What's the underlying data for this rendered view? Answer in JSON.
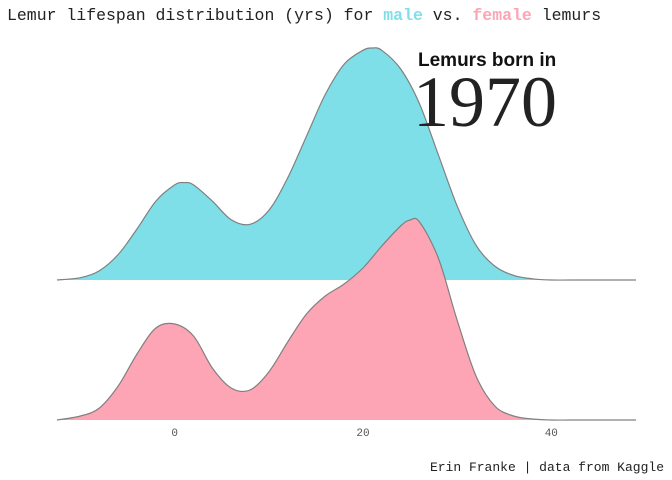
{
  "title": {
    "prefix": "Lemur lifespan distribution (yrs) for ",
    "male_word": "male",
    "middle": " vs. ",
    "female_word": "female",
    "suffix": " lemurs"
  },
  "annotation": {
    "label": "Lemurs born in",
    "year": "1970"
  },
  "caption": "Erin Franke | data from Kaggle",
  "colors": {
    "male": "#7fdfe8",
    "female": "#fda5b4",
    "outline": "#808080",
    "text": "#222222",
    "axis_text": "#555555"
  },
  "chart_data": {
    "type": "area",
    "subtype": "ridgeline-density",
    "title": "Lemur lifespan distribution (yrs) for male vs. female lemurs",
    "xlabel": "",
    "ylabel": "",
    "xlim": [
      -12.5,
      49
    ],
    "x_ticks": [
      0,
      20,
      40
    ],
    "x_tick_labels": [
      "0",
      "20",
      "40"
    ],
    "grid": false,
    "series": [
      {
        "name": "male",
        "color": "#7fdfe8",
        "x": [
          -12.5,
          -10,
          -8,
          -6,
          -4,
          -2,
          0,
          1,
          2,
          4,
          6,
          8,
          10,
          12,
          14,
          16,
          18,
          20,
          21,
          22,
          24,
          26,
          28,
          30,
          32,
          34,
          36,
          38,
          40,
          42,
          44,
          46,
          49
        ],
        "y": [
          0.0,
          0.01,
          0.04,
          0.11,
          0.22,
          0.34,
          0.41,
          0.42,
          0.41,
          0.34,
          0.26,
          0.24,
          0.3,
          0.44,
          0.62,
          0.8,
          0.93,
          0.99,
          1.0,
          0.99,
          0.91,
          0.76,
          0.54,
          0.32,
          0.15,
          0.06,
          0.02,
          0.005,
          0.0,
          0.0,
          0.0,
          0.0,
          0.0
        ]
      },
      {
        "name": "female",
        "color": "#fda5b4",
        "x": [
          -12.5,
          -10,
          -8,
          -6,
          -4,
          -2,
          0,
          2,
          4,
          6,
          8,
          10,
          12,
          14,
          16,
          18,
          20,
          22,
          24,
          25,
          26,
          28,
          30,
          32,
          34,
          36,
          38,
          40,
          42,
          44,
          46,
          49
        ],
        "y": [
          0.0,
          0.02,
          0.06,
          0.17,
          0.33,
          0.46,
          0.48,
          0.42,
          0.26,
          0.16,
          0.15,
          0.24,
          0.39,
          0.53,
          0.62,
          0.68,
          0.76,
          0.87,
          0.97,
          1.0,
          0.99,
          0.81,
          0.5,
          0.22,
          0.07,
          0.02,
          0.005,
          0.0,
          0.0,
          0.0,
          0.0,
          0.0
        ]
      }
    ]
  }
}
